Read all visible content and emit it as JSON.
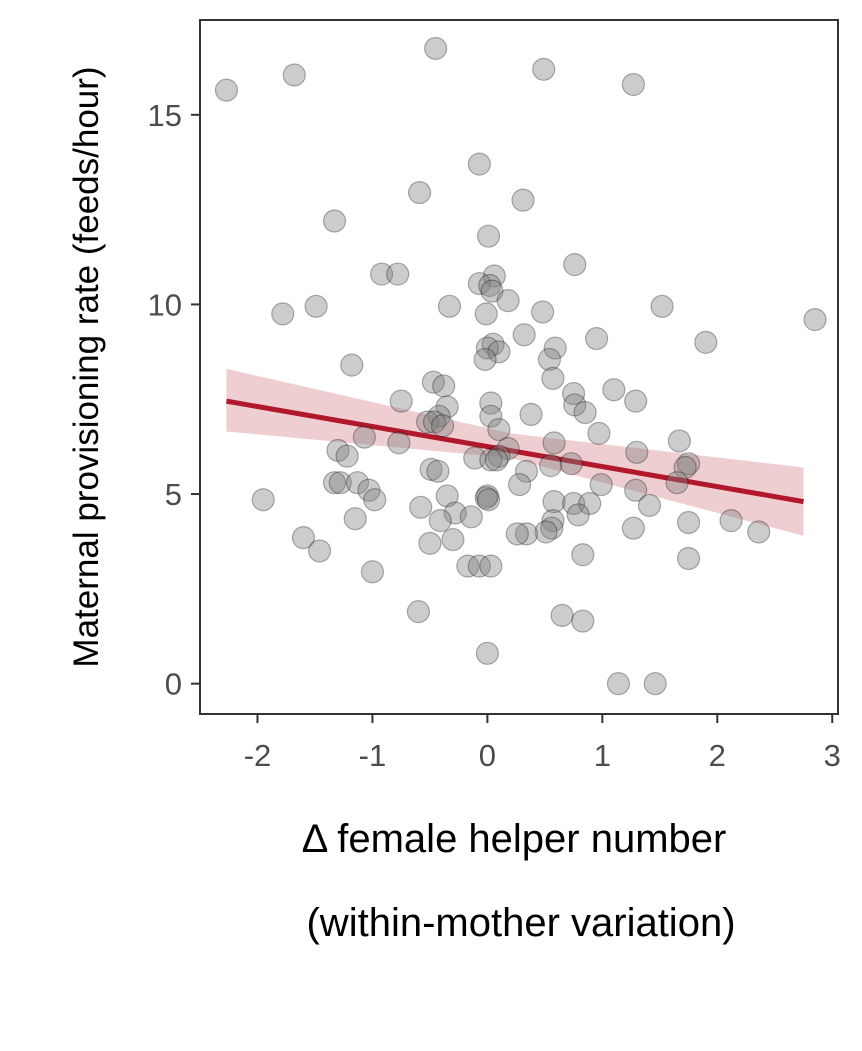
{
  "chart_data": {
    "type": "scatter",
    "title": "",
    "xlabel": "Δ female helper number",
    "xlabel_line2": "(within-mother variation)",
    "ylabel": "Maternal provisioning rate (feeds/hour)",
    "xlim": [
      -2.5,
      3.05
    ],
    "ylim": [
      -0.8,
      17.5
    ],
    "x_ticks": [
      -2,
      -1,
      0,
      1,
      2,
      3
    ],
    "x_tick_labels": [
      "-2",
      "-1",
      "0",
      "1",
      "2",
      "3"
    ],
    "y_ticks": [
      0,
      5,
      10,
      15
    ],
    "y_tick_labels": [
      "0",
      "5",
      "10",
      "15"
    ],
    "grid": false,
    "legend": "none",
    "point_color": "#7f7f7f",
    "line_color": "#b2182b",
    "band_color": "#e8b9bd",
    "points": [
      [
        -2.27,
        15.65
      ],
      [
        -1.68,
        16.05
      ],
      [
        -0.45,
        16.75
      ],
      [
        0.49,
        16.2
      ],
      [
        1.27,
        15.8
      ],
      [
        -0.07,
        13.7
      ],
      [
        -0.59,
        12.95
      ],
      [
        0.31,
        12.75
      ],
      [
        -1.33,
        12.2
      ],
      [
        0.01,
        11.8
      ],
      [
        0.76,
        11.05
      ],
      [
        -0.92,
        10.8
      ],
      [
        -0.78,
        10.8
      ],
      [
        0.06,
        10.75
      ],
      [
        -0.07,
        10.55
      ],
      [
        0.02,
        10.5
      ],
      [
        0.04,
        10.35
      ],
      [
        0.18,
        10.1
      ],
      [
        -1.49,
        9.95
      ],
      [
        -0.33,
        9.95
      ],
      [
        1.52,
        9.95
      ],
      [
        -1.78,
        9.75
      ],
      [
        -0.01,
        9.75
      ],
      [
        0.48,
        9.8
      ],
      [
        2.85,
        9.6
      ],
      [
        0.32,
        9.2
      ],
      [
        0.95,
        9.1
      ],
      [
        1.9,
        9.0
      ],
      [
        0.05,
        8.95
      ],
      [
        0.0,
        8.85
      ],
      [
        0.1,
        8.75
      ],
      [
        0.59,
        8.85
      ],
      [
        -0.02,
        8.55
      ],
      [
        0.54,
        8.55
      ],
      [
        -1.18,
        8.4
      ],
      [
        0.57,
        8.05
      ],
      [
        -0.47,
        7.95
      ],
      [
        -0.38,
        7.85
      ],
      [
        1.1,
        7.75
      ],
      [
        0.75,
        7.65
      ],
      [
        1.29,
        7.45
      ],
      [
        -0.75,
        7.45
      ],
      [
        0.03,
        7.4
      ],
      [
        -0.35,
        7.3
      ],
      [
        0.76,
        7.35
      ],
      [
        0.85,
        7.15
      ],
      [
        0.38,
        7.1
      ],
      [
        -0.42,
        7.05
      ],
      [
        0.03,
        7.05
      ],
      [
        -0.52,
        6.9
      ],
      [
        -0.46,
        6.9
      ],
      [
        0.1,
        6.7
      ],
      [
        -0.39,
        6.8
      ],
      [
        0.97,
        6.6
      ],
      [
        -1.07,
        6.5
      ],
      [
        1.67,
        6.4
      ],
      [
        0.58,
        6.35
      ],
      [
        -0.77,
        6.35
      ],
      [
        0.18,
        6.2
      ],
      [
        -1.3,
        6.15
      ],
      [
        0.1,
        6.0
      ],
      [
        -1.22,
        6.0
      ],
      [
        1.3,
        6.1
      ],
      [
        -0.11,
        5.95
      ],
      [
        0.03,
        5.9
      ],
      [
        0.08,
        5.9
      ],
      [
        1.75,
        5.8
      ],
      [
        0.73,
        5.8
      ],
      [
        0.55,
        5.75
      ],
      [
        1.72,
        5.7
      ],
      [
        -0.49,
        5.65
      ],
      [
        -0.43,
        5.6
      ],
      [
        0.34,
        5.6
      ],
      [
        1.65,
        5.3
      ],
      [
        -1.33,
        5.3
      ],
      [
        -1.28,
        5.3
      ],
      [
        -1.13,
        5.3
      ],
      [
        0.28,
        5.25
      ],
      [
        0.99,
        5.25
      ],
      [
        -1.03,
        5.1
      ],
      [
        1.29,
        5.1
      ],
      [
        0.0,
        4.95
      ],
      [
        -0.35,
        4.95
      ],
      [
        -0.01,
        4.9
      ],
      [
        0.01,
        4.85
      ],
      [
        -0.98,
        4.85
      ],
      [
        -1.95,
        4.85
      ],
      [
        0.58,
        4.8
      ],
      [
        0.75,
        4.75
      ],
      [
        0.89,
        4.75
      ],
      [
        1.41,
        4.7
      ],
      [
        -0.58,
        4.65
      ],
      [
        -0.28,
        4.5
      ],
      [
        0.79,
        4.45
      ],
      [
        -1.15,
        4.35
      ],
      [
        -0.14,
        4.4
      ],
      [
        0.57,
        4.3
      ],
      [
        -0.41,
        4.3
      ],
      [
        1.75,
        4.25
      ],
      [
        2.12,
        4.3
      ],
      [
        0.56,
        4.1
      ],
      [
        0.51,
        4.0
      ],
      [
        1.27,
        4.1
      ],
      [
        0.34,
        3.95
      ],
      [
        0.26,
        3.95
      ],
      [
        2.36,
        4.0
      ],
      [
        -1.6,
        3.85
      ],
      [
        -0.3,
        3.8
      ],
      [
        -0.5,
        3.7
      ],
      [
        -1.46,
        3.5
      ],
      [
        0.83,
        3.4
      ],
      [
        1.75,
        3.3
      ],
      [
        -0.17,
        3.1
      ],
      [
        -0.07,
        3.1
      ],
      [
        0.03,
        3.1
      ],
      [
        -1.0,
        2.95
      ],
      [
        -0.6,
        1.9
      ],
      [
        0.65,
        1.8
      ],
      [
        0.83,
        1.65
      ],
      [
        0.0,
        0.8
      ],
      [
        1.14,
        0.0
      ],
      [
        1.46,
        0.0
      ]
    ],
    "trend": {
      "x": [
        -2.27,
        2.75
      ],
      "y": [
        7.45,
        4.8
      ]
    },
    "band": {
      "x": [
        -2.27,
        0.2,
        2.75
      ],
      "lower": [
        6.65,
        5.95,
        3.9
      ],
      "upper": [
        8.3,
        6.6,
        5.7
      ]
    }
  }
}
